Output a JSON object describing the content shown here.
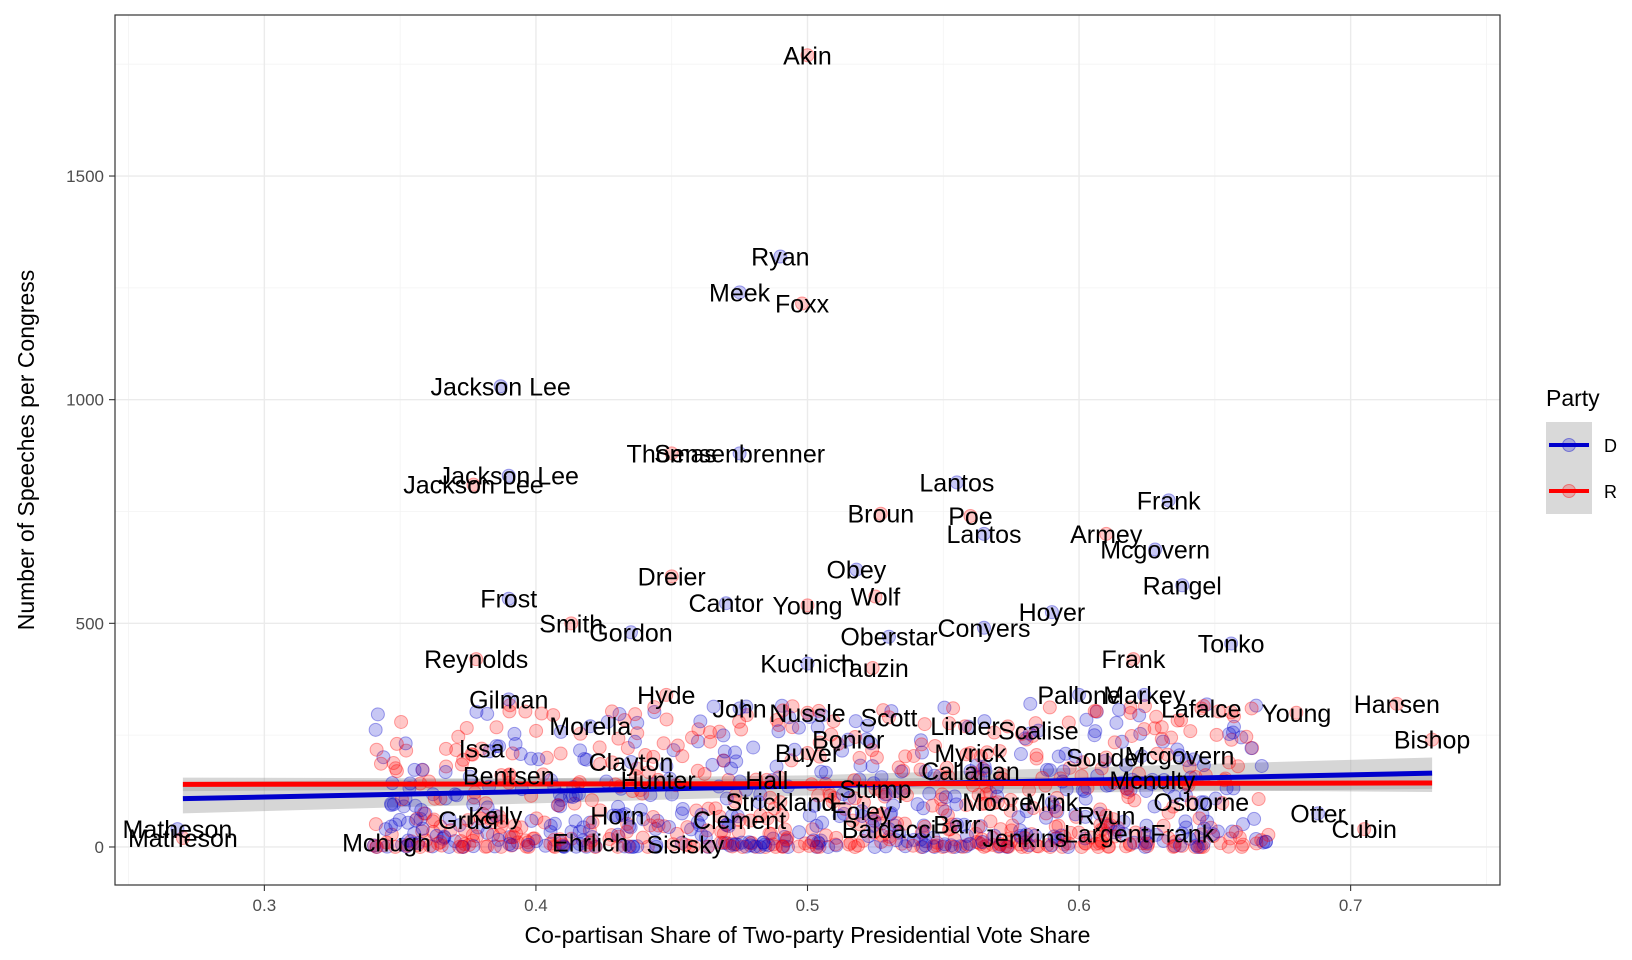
{
  "chart_data": {
    "type": "scatter",
    "xlabel": "Co-partisan Share of Two-party Presidential Vote Share",
    "ylabel": "Number of Speeches per Congress",
    "xlim": [
      0.245,
      0.755
    ],
    "ylim": [
      -85,
      1860
    ],
    "x_ticks": [
      0.3,
      0.4,
      0.5,
      0.6,
      0.7
    ],
    "x_tick_labels": [
      "0.3",
      "0.4",
      "0.5",
      "0.6",
      "0.7"
    ],
    "y_ticks": [
      0,
      500,
      1000,
      1500
    ],
    "y_tick_labels": [
      "0",
      "500",
      "1000",
      "1500"
    ],
    "grid": true,
    "legend": {
      "title": "Party",
      "position": "right",
      "entries": [
        {
          "label": "D",
          "color": "#0000cc"
        },
        {
          "label": "R",
          "color": "#ff0000"
        }
      ]
    },
    "series": [
      {
        "name": "D",
        "color": "#0000cc",
        "fit": {
          "x": [
            0.27,
            0.73
          ],
          "y": [
            108,
            165
          ],
          "ci_x": [
            0.27,
            0.5,
            0.73
          ],
          "ci_low": [
            75,
            115,
            130
          ],
          "ci_high": [
            145,
            160,
            200
          ]
        },
        "labeled_points": [
          {
            "label": "Ryan",
            "x": 0.49,
            "y": 1320
          },
          {
            "label": "Meek",
            "x": 0.475,
            "y": 1240
          },
          {
            "label": "Jackson Lee",
            "x": 0.387,
            "y": 1030
          },
          {
            "label": "Jackson Lee",
            "x": 0.39,
            "y": 830
          },
          {
            "label": "Sensenbrenner",
            "x": 0.475,
            "y": 880
          },
          {
            "label": "Lantos",
            "x": 0.555,
            "y": 815
          },
          {
            "label": "Frank",
            "x": 0.633,
            "y": 775
          },
          {
            "label": "Lantos",
            "x": 0.565,
            "y": 700
          },
          {
            "label": "Obey",
            "x": 0.518,
            "y": 620
          },
          {
            "label": "Mcgovern",
            "x": 0.628,
            "y": 665
          },
          {
            "label": "Frost",
            "x": 0.39,
            "y": 555
          },
          {
            "label": "Rangel",
            "x": 0.638,
            "y": 585
          },
          {
            "label": "Hoyer",
            "x": 0.59,
            "y": 525
          },
          {
            "label": "Conyers",
            "x": 0.565,
            "y": 490
          },
          {
            "label": "Gordon",
            "x": 0.435,
            "y": 480
          },
          {
            "label": "Cantor",
            "x": 0.47,
            "y": 545
          },
          {
            "label": "Oberstar",
            "x": 0.53,
            "y": 470
          },
          {
            "label": "Tonko",
            "x": 0.656,
            "y": 455
          },
          {
            "label": "Kucinich",
            "x": 0.5,
            "y": 410
          },
          {
            "label": "Pallone",
            "x": 0.6,
            "y": 340
          },
          {
            "label": "Markey",
            "x": 0.624,
            "y": 340
          },
          {
            "label": "Gilman",
            "x": 0.39,
            "y": 330
          },
          {
            "label": "Morella",
            "x": 0.42,
            "y": 270
          },
          {
            "label": "John",
            "x": 0.475,
            "y": 310
          },
          {
            "label": "Scalise",
            "x": 0.585,
            "y": 260
          },
          {
            "label": "Mcgovern",
            "x": 0.637,
            "y": 205
          },
          {
            "label": "Bonior",
            "x": 0.515,
            "y": 240
          },
          {
            "label": "Clayton",
            "x": 0.435,
            "y": 190
          },
          {
            "label": "Callahan",
            "x": 0.56,
            "y": 170
          },
          {
            "label": "Mink",
            "x": 0.59,
            "y": 100
          },
          {
            "label": "Mcnulty",
            "x": 0.627,
            "y": 150
          },
          {
            "label": "Osborne",
            "x": 0.645,
            "y": 100
          },
          {
            "label": "Kelly",
            "x": 0.385,
            "y": 70
          },
          {
            "label": "Horn",
            "x": 0.43,
            "y": 70
          },
          {
            "label": "Foley",
            "x": 0.52,
            "y": 80
          },
          {
            "label": "Baldacci",
            "x": 0.53,
            "y": 40
          },
          {
            "label": "Barr",
            "x": 0.555,
            "y": 50
          },
          {
            "label": "Otter",
            "x": 0.688,
            "y": 75
          },
          {
            "label": "Matheson",
            "x": 0.268,
            "y": 40
          },
          {
            "label": "Frank",
            "x": 0.638,
            "y": 30
          }
        ]
      },
      {
        "name": "R",
        "color": "#ff0000",
        "fit": {
          "x": [
            0.27,
            0.73
          ],
          "y": [
            140,
            143
          ],
          "ci_x": [
            0.27,
            0.5,
            0.73
          ],
          "ci_low": [
            125,
            132,
            123
          ],
          "ci_high": [
            155,
            152,
            163
          ]
        },
        "labeled_points": [
          {
            "label": "Akin",
            "x": 0.5,
            "y": 1770
          },
          {
            "label": "Foxx",
            "x": 0.498,
            "y": 1215
          },
          {
            "label": "Thomas",
            "x": 0.45,
            "y": 880
          },
          {
            "label": "Jackson Lee",
            "x": 0.377,
            "y": 810
          },
          {
            "label": "Broun",
            "x": 0.527,
            "y": 745
          },
          {
            "label": "Poe",
            "x": 0.56,
            "y": 740
          },
          {
            "label": "Armey",
            "x": 0.61,
            "y": 700
          },
          {
            "label": "Dreier",
            "x": 0.45,
            "y": 605
          },
          {
            "label": "Smith",
            "x": 0.413,
            "y": 500
          },
          {
            "label": "Young",
            "x": 0.5,
            "y": 540
          },
          {
            "label": "Wolf",
            "x": 0.525,
            "y": 560
          },
          {
            "label": "Frank",
            "x": 0.62,
            "y": 420
          },
          {
            "label": "Reynolds",
            "x": 0.378,
            "y": 420
          },
          {
            "label": "Hyde",
            "x": 0.448,
            "y": 340
          },
          {
            "label": "Tauzin",
            "x": 0.524,
            "y": 400
          },
          {
            "label": "Nussle",
            "x": 0.5,
            "y": 300
          },
          {
            "label": "Scott",
            "x": 0.53,
            "y": 290
          },
          {
            "label": "Linder",
            "x": 0.558,
            "y": 270
          },
          {
            "label": "Lafalce",
            "x": 0.645,
            "y": 310
          },
          {
            "label": "Young",
            "x": 0.68,
            "y": 300
          },
          {
            "label": "Hansen",
            "x": 0.717,
            "y": 320
          },
          {
            "label": "Issa",
            "x": 0.38,
            "y": 220
          },
          {
            "label": "Myrick",
            "x": 0.56,
            "y": 210
          },
          {
            "label": "Souder",
            "x": 0.61,
            "y": 200
          },
          {
            "label": "Buyer",
            "x": 0.5,
            "y": 210
          },
          {
            "label": "Bishop",
            "x": 0.73,
            "y": 240
          },
          {
            "label": "Bentsen",
            "x": 0.39,
            "y": 160
          },
          {
            "label": "Hall",
            "x": 0.485,
            "y": 150
          },
          {
            "label": "Hunter",
            "x": 0.445,
            "y": 150
          },
          {
            "label": "Stump",
            "x": 0.525,
            "y": 130
          },
          {
            "label": "Strickland",
            "x": 0.49,
            "y": 100
          },
          {
            "label": "Moore",
            "x": 0.57,
            "y": 100
          },
          {
            "label": "Gruci",
            "x": 0.375,
            "y": 60
          },
          {
            "label": "Clement",
            "x": 0.475,
            "y": 60
          },
          {
            "label": "Ryun",
            "x": 0.61,
            "y": 70
          },
          {
            "label": "Mchugh",
            "x": 0.345,
            "y": 10
          },
          {
            "label": "Ehrlich",
            "x": 0.42,
            "y": 10
          },
          {
            "label": "Sisisky",
            "x": 0.455,
            "y": 5
          },
          {
            "label": "Jenkins",
            "x": 0.58,
            "y": 20
          },
          {
            "label": "Largent",
            "x": 0.61,
            "y": 30
          },
          {
            "label": "Cubin",
            "x": 0.705,
            "y": 40
          },
          {
            "label": "Matheson",
            "x": 0.27,
            "y": 20
          }
        ]
      }
    ]
  }
}
